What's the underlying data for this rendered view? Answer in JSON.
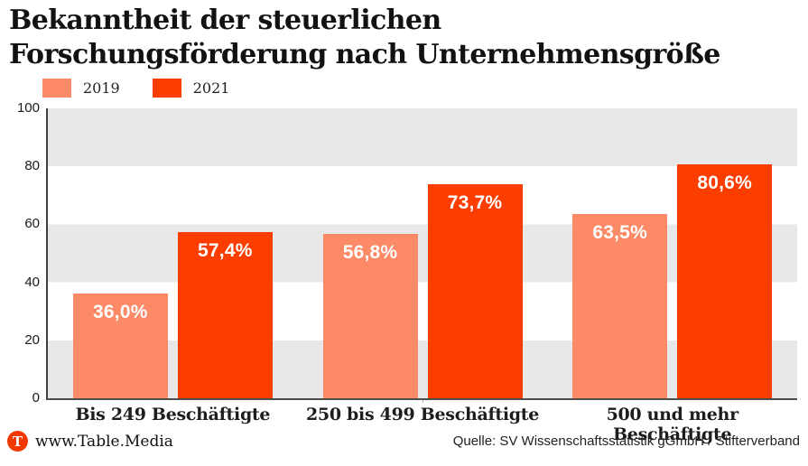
{
  "title": "Bekanntheit der steuerlichen Forschungsförderung nach Unternehmensgröße",
  "footer": {
    "logo_letter": "T",
    "brand": "www.Table.Media",
    "source": "Quelle: SV Wissenschaftsstatistik gGmbH / Stifterverband"
  },
  "colors": {
    "series_2019": "#FC8A66",
    "series_2021": "#FB3D00",
    "band_gray": "#E8E8E8",
    "axis": "#4D4D4D",
    "logo": "#F23A00",
    "text_dark": "#1A1A1A"
  },
  "chart_data": {
    "type": "bar",
    "title": "Bekanntheit der steuerlichen Forschungsförderung nach Unternehmensgröße",
    "categories": [
      "Bis 249 Beschäftigte",
      "250 bis 499 Beschäftigte",
      "500 und mehr Beschäftigte"
    ],
    "series": [
      {
        "name": "2019",
        "color": "#FC8A66",
        "values": [
          36.0,
          56.8,
          63.5
        ],
        "labels": [
          "36,0%",
          "56,8%",
          "63,5%"
        ]
      },
      {
        "name": "2021",
        "color": "#FB3D00",
        "values": [
          57.4,
          73.7,
          80.6
        ],
        "labels": [
          "57,4%",
          "73,7%",
          "80,6%"
        ]
      }
    ],
    "xlabel": "",
    "ylabel": "",
    "ylim": [
      0,
      100
    ],
    "yticks": [
      0,
      20,
      40,
      60,
      80,
      100
    ],
    "value_suffix": "%",
    "grid": "horizontal-bands",
    "legend_position": "top-left"
  }
}
